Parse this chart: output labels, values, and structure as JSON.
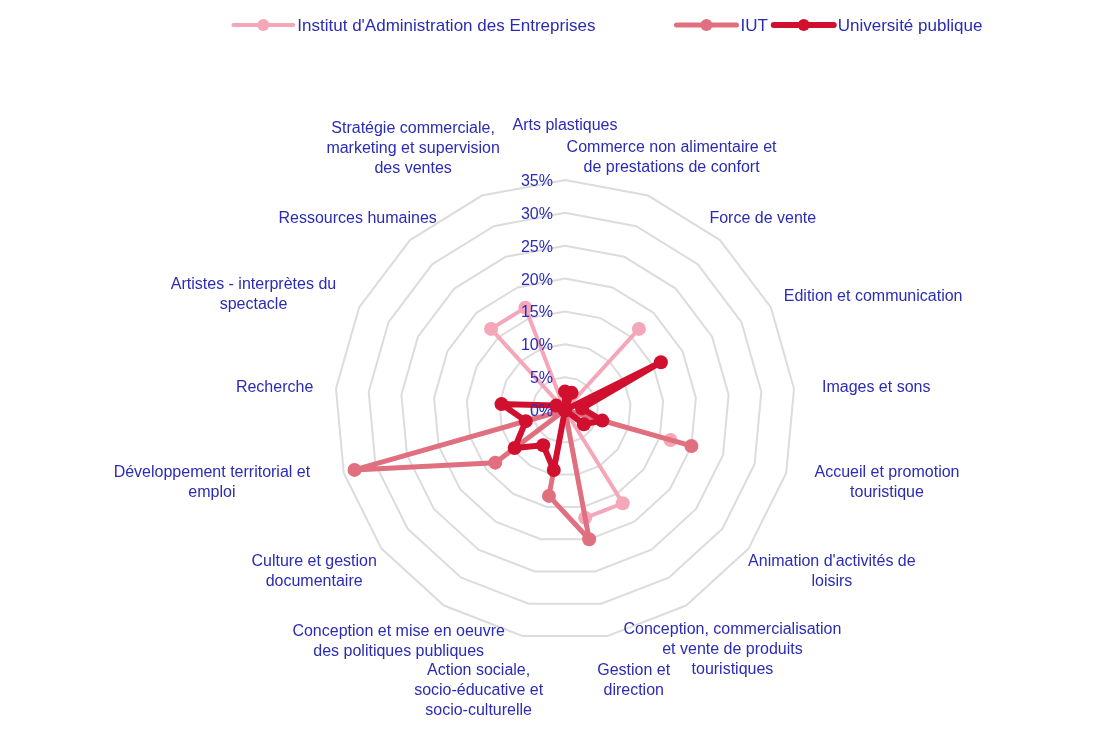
{
  "chart_data": {
    "type": "radar",
    "categories": [
      "Arts plastiques",
      "Commerce non alimentaire et de prestations de confort",
      "Force de vente",
      "Edition et communication",
      "Images et sons",
      "Accueil et promotion touristique",
      "Animation d'activités de loisirs",
      "Conception, commercialisation et vente de produits touristiques",
      "Gestion et direction",
      "Action sociale, socio-éducative et socio-culturelle",
      "Conception et mise en oeuvre des politiques publiques",
      "Culture et gestion documentaire",
      "Développement territorial et emploi",
      "Recherche",
      "Artistes - interprètes du spectacle",
      "Ressources humaines",
      "Stratégie commerciale, marketing et supervision des ventes"
    ],
    "series": [
      {
        "name": "Institut d'Administration des Entreprises",
        "color": "#f4a7b9",
        "values": [
          0,
          0,
          16.7,
          0,
          0,
          16.7,
          0,
          16.7,
          16.7,
          0,
          0,
          0,
          0,
          0,
          0,
          16.7,
          16.7
        ]
      },
      {
        "name": "IUT",
        "color": "#e0707f",
        "values": [
          0,
          0,
          0,
          0,
          0,
          20,
          0,
          0,
          20,
          13.3,
          0,
          13.3,
          33.3,
          0,
          0,
          0,
          0
        ]
      },
      {
        "name": "Université publique",
        "color": "#d0102e",
        "values": [
          2.8,
          2.8,
          0,
          16.3,
          2.6,
          5.9,
          3.6,
          0,
          0,
          9.3,
          6.3,
          9.6,
          6.2,
          9.7,
          1.5,
          0,
          0
        ]
      }
    ],
    "ylim": [
      0,
      35
    ],
    "yticks": [
      {
        "value": 0,
        "label": "0%"
      },
      {
        "value": 5,
        "label": "5%"
      },
      {
        "value": 10,
        "label": "10%"
      },
      {
        "value": 15,
        "label": "15%"
      },
      {
        "value": 20,
        "label": "20%"
      },
      {
        "value": 25,
        "label": "25%"
      },
      {
        "value": 30,
        "label": "30%"
      },
      {
        "value": 35,
        "label": "35%"
      }
    ],
    "grid": true,
    "legend": "top",
    "marker": "circle"
  }
}
